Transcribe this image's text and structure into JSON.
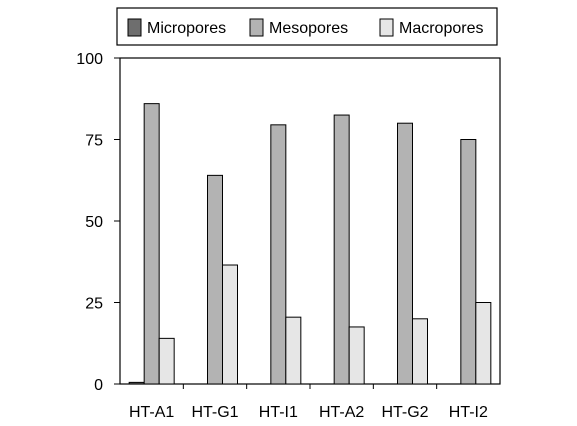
{
  "chart_data": {
    "type": "bar",
    "categories": [
      "HT-A1",
      "HT-G1",
      "HT-I1",
      "HT-A2",
      "HT-G2",
      "HT-I2"
    ],
    "series": [
      {
        "name": "Micropores",
        "color": "#6e6e6e",
        "values": [
          0.5,
          0,
          0,
          0,
          0,
          0
        ]
      },
      {
        "name": "Mesopores",
        "color": "#b3b3b3",
        "values": [
          86,
          64,
          79.5,
          82.5,
          80,
          75
        ]
      },
      {
        "name": "Macropores",
        "color": "#e6e6e6",
        "values": [
          14,
          36.5,
          20.5,
          17.5,
          20,
          25
        ]
      }
    ],
    "ylim": [
      0,
      100
    ],
    "yticks": [
      "0",
      "25",
      "50",
      "75",
      "100"
    ],
    "ytick_values": [
      0,
      25,
      50,
      75,
      100
    ],
    "grid": false,
    "legend_position": "top"
  }
}
